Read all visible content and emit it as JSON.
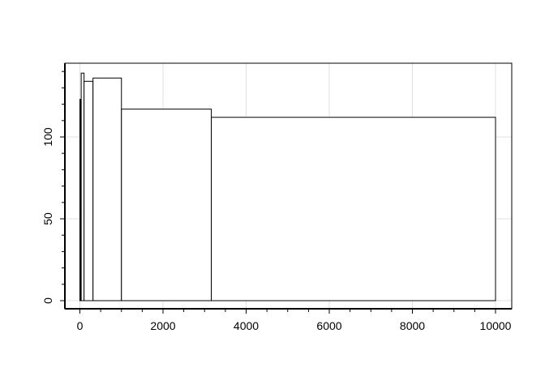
{
  "chart_data": {
    "type": "bar",
    "title": "",
    "xlabel": "",
    "ylabel": "",
    "breaks": [
      1,
      3.16,
      10,
      31.6,
      100,
      316,
      1000,
      3162,
      10000
    ],
    "values": [
      123,
      121,
      122,
      139,
      134,
      136,
      117,
      112
    ],
    "xlim": [
      -350,
      10400
    ],
    "ylim": [
      -5,
      145
    ],
    "x_ticks": [
      0,
      2000,
      4000,
      6000,
      8000,
      10000
    ],
    "x_tick_labels": [
      "0",
      "2000",
      "4000",
      "6000",
      "8000",
      "10000"
    ],
    "x_minor_step": 500,
    "y_ticks": [
      0,
      50,
      100
    ],
    "y_tick_labels": [
      "0",
      "50",
      "100"
    ],
    "y_minor_step": 10,
    "grid": true,
    "colors": {
      "bar_fill": "#ffffff",
      "bar_stroke": "#000000",
      "grid": "#e0e0e0"
    }
  }
}
